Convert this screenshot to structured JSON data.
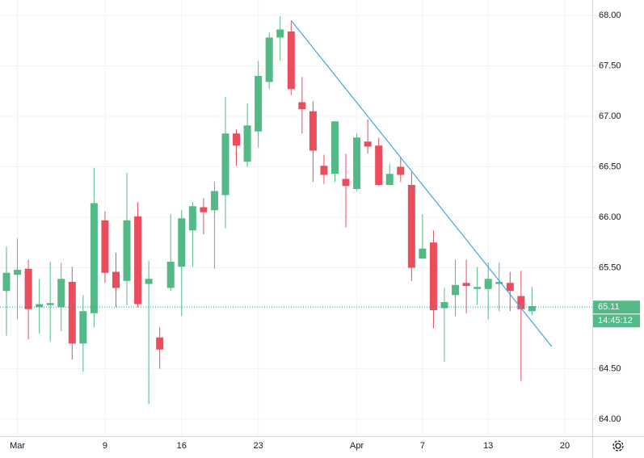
{
  "chart_data": {
    "type": "candlestick",
    "categories": [
      null,
      "Mar",
      null,
      null,
      null,
      null,
      null,
      null,
      null,
      "9",
      null,
      null,
      null,
      null,
      null,
      null,
      "16",
      null,
      null,
      null,
      null,
      null,
      null,
      "23",
      null,
      null,
      null,
      null,
      null,
      null,
      null,
      null,
      "Apr",
      null,
      null,
      null,
      null,
      null,
      "7",
      null,
      null,
      null,
      null,
      null,
      "13",
      null,
      null,
      null,
      null,
      null,
      null,
      "20",
      null,
      null
    ],
    "open": [
      65.27,
      65.43,
      65.49,
      65.11,
      65.13,
      65.11,
      65.36,
      64.75,
      65.05,
      65.97,
      65.46,
      65.37,
      66.01,
      65.34,
      64.81,
      65.3,
      65.51,
      65.87,
      66.1,
      66.07,
      66.22,
      66.83,
      66.55,
      66.85,
      67.34,
      67.78,
      67.84,
      67.14,
      67.05,
      66.51,
      66.43,
      66.38,
      66.28,
      66.75,
      66.71,
      66.32,
      66.5,
      66.32,
      65.59,
      65.75,
      65.1,
      65.23,
      65.35,
      65.29,
      65.29,
      65.34,
      65.35,
      65.22,
      65.07,
      null,
      null,
      null,
      null,
      null
    ],
    "high": [
      65.71,
      65.79,
      65.58,
      65.39,
      65.56,
      65.55,
      65.51,
      65.23,
      66.49,
      66.06,
      65.65,
      66.44,
      66.15,
      65.57,
      64.91,
      66.03,
      66.07,
      66.15,
      66.19,
      66.35,
      67.19,
      66.87,
      67.13,
      67.55,
      67.83,
      67.99,
      67.94,
      67.39,
      67.15,
      66.62,
      66.95,
      66.63,
      66.83,
      66.97,
      66.79,
      66.53,
      66.59,
      66.46,
      66.03,
      65.87,
      65.3,
      65.58,
      65.58,
      65.51,
      65.55,
      65.55,
      65.46,
      65.47,
      65.31,
      null,
      null,
      null,
      null,
      null
    ],
    "low": [
      64.83,
      64.99,
      64.79,
      64.85,
      64.77,
      64.87,
      64.59,
      64.47,
      64.91,
      65.35,
      65.11,
      65.13,
      65.11,
      64.15,
      64.5,
      65.27,
      65.02,
      65.51,
      65.83,
      65.49,
      65.89,
      66.51,
      66.5,
      66.69,
      67.27,
      67.55,
      67.21,
      66.83,
      66.35,
      66.33,
      66.35,
      65.9,
      66.26,
      66.63,
      66.31,
      66.32,
      66.35,
      65.37,
      65.59,
      64.9,
      64.57,
      65.02,
      65.05,
      65.13,
      64.99,
      65.07,
      65.07,
      64.38,
      65.03,
      null,
      null,
      null,
      null,
      null
    ],
    "close": [
      65.45,
      65.48,
      65.09,
      65.14,
      65.15,
      65.39,
      64.75,
      65.07,
      66.14,
      65.45,
      65.3,
      65.97,
      65.14,
      65.39,
      64.69,
      65.56,
      65.99,
      66.11,
      66.05,
      66.26,
      66.83,
      66.71,
      66.91,
      67.4,
      67.78,
      67.86,
      67.27,
      67.07,
      66.66,
      66.42,
      66.95,
      66.31,
      66.79,
      66.7,
      66.32,
      66.43,
      66.42,
      65.5,
      65.69,
      65.08,
      65.16,
      65.33,
      65.32,
      65.31,
      65.39,
      65.36,
      65.27,
      65.09,
      65.12,
      null,
      null,
      null,
      null,
      null
    ],
    "up_color": "#53b987",
    "down_color": "#eb4d5c",
    "ylim": [
      63.832,
      68.152
    ],
    "yticks": [
      {
        "value": 64,
        "label": "64.00"
      },
      {
        "value": 64.5,
        "label": "64.50"
      },
      {
        "value": 65.5,
        "label": "65.50"
      },
      {
        "value": 66,
        "label": "66.00"
      },
      {
        "value": 66.5,
        "label": "66.50"
      },
      {
        "value": 67,
        "label": "67.00"
      },
      {
        "value": 67.5,
        "label": "67.50"
      },
      {
        "value": 68,
        "label": "68.00"
      }
    ],
    "grid": true,
    "last_price": 65.11,
    "last_price_color": "#26a69a",
    "countdown": "14:45:12",
    "trendline": {
      "color": "#3ea6e6",
      "from": {
        "index": 26,
        "price": 67.95
      },
      "to": {
        "index": 49.8,
        "price": 64.72
      }
    }
  }
}
